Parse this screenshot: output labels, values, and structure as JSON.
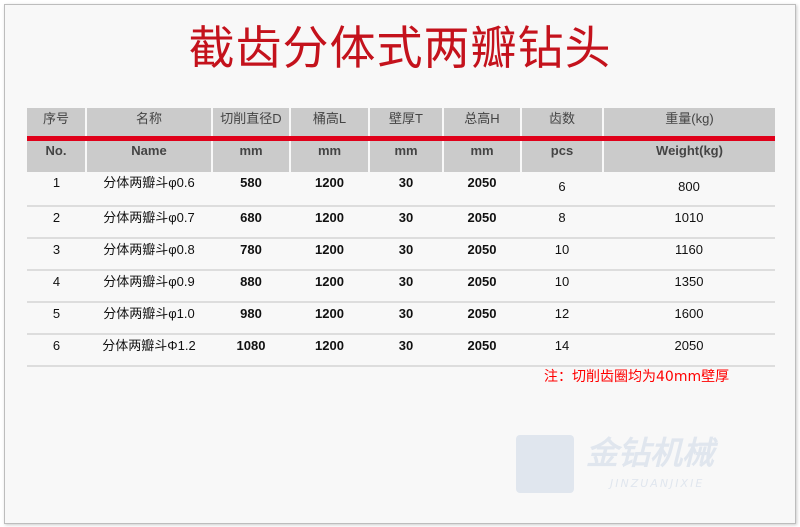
{
  "title": "截齿分体式两瓣钻头",
  "header_cn": [
    "序号",
    "名称",
    "切削直径D",
    "桶高L",
    "壁厚T",
    "总高H",
    "齿数",
    "重量(kg)"
  ],
  "header_en": [
    "No.",
    "Name",
    "mm",
    "mm",
    "mm",
    "mm",
    "pcs",
    "Weight(kg)"
  ],
  "rows": [
    [
      "1",
      "分体两瓣斗φ0.6",
      "580",
      "1200",
      "30",
      "2050",
      "6",
      "800"
    ],
    [
      "2",
      "分体两瓣斗φ0.7",
      "680",
      "1200",
      "30",
      "2050",
      "8",
      "1010"
    ],
    [
      "3",
      "分体两瓣斗φ0.8",
      "780",
      "1200",
      "30",
      "2050",
      "10",
      "1160"
    ],
    [
      "4",
      "分体两瓣斗φ0.9",
      "880",
      "1200",
      "30",
      "2050",
      "10",
      "1350"
    ],
    [
      "5",
      "分体两瓣斗φ1.0",
      "980",
      "1200",
      "30",
      "2050",
      "12",
      "1600"
    ],
    [
      "6",
      "分体两瓣斗Φ1.2",
      "1080",
      "1200",
      "30",
      "2050",
      "14",
      "2050"
    ]
  ],
  "note": "注：切削齿圈均为40mm壁厚",
  "logo": {
    "cn": "金钻机械",
    "en": "JINZUANJIXIE"
  },
  "colors": {
    "title": "#c4121c",
    "accent_line": "#e0001a",
    "header_bg": "#cbcbcb",
    "note": "#ff0000"
  }
}
